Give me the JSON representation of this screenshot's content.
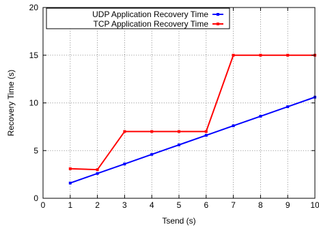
{
  "chart_data": {
    "type": "line",
    "title": "",
    "xlabel": "Tsend (s)",
    "ylabel": "Recovery Time (s)",
    "xlim": [
      0,
      10
    ],
    "ylim": [
      0,
      20
    ],
    "x_ticks": [
      0,
      1,
      2,
      3,
      4,
      5,
      6,
      7,
      8,
      9,
      10
    ],
    "y_ticks": [
      0,
      5,
      10,
      15,
      20
    ],
    "grid": true,
    "legend_position": "top-left",
    "series": [
      {
        "name": "UDP Application Recovery Time",
        "color": "#0000ff",
        "x": [
          1,
          2,
          3,
          4,
          5,
          6,
          7,
          8,
          9,
          10
        ],
        "y": [
          1.6,
          2.6,
          3.6,
          4.6,
          5.6,
          6.6,
          7.6,
          8.6,
          9.6,
          10.6
        ]
      },
      {
        "name": "TCP Application Recovery Time",
        "color": "#ff0000",
        "x": [
          1,
          2,
          3,
          4,
          5,
          6,
          7,
          8,
          9,
          10
        ],
        "y": [
          3.1,
          3.0,
          7.0,
          7.0,
          7.0,
          7.0,
          15.0,
          15.0,
          15.0,
          15.0
        ]
      }
    ]
  }
}
